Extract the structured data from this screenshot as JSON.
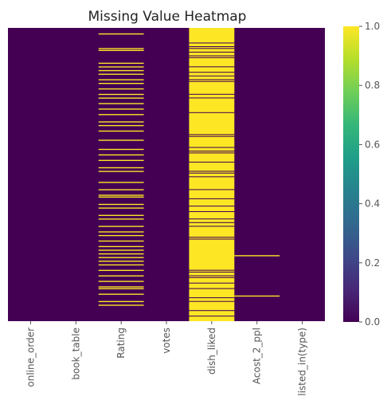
{
  "chart_data": {
    "type": "heatmap",
    "title": "Missing Value Heatmap",
    "columns": [
      "online_order",
      "book_table",
      "Rating",
      "votes",
      "dish_liked",
      "Acost_2_ppl",
      "listed_in(type)"
    ],
    "colorbar": {
      "colormap": "viridis",
      "range": [
        0.0,
        1.0
      ],
      "ticks": [
        "0.0",
        "0.2",
        "0.4",
        "0.6",
        "0.8",
        "1.0"
      ],
      "low_color": "#440154",
      "high_color": "#fde725"
    },
    "missing_rows": {
      "online_order": [],
      "book_table": [],
      "Rating": [
        3,
        11,
        12,
        19,
        21,
        23,
        25,
        28,
        30,
        33,
        36,
        38,
        41,
        44,
        47,
        51,
        53,
        56,
        61,
        66,
        69,
        72,
        76,
        78,
        84,
        88,
        91,
        92,
        96,
        98,
        102,
        104,
        108,
        111,
        113,
        116,
        119,
        121,
        123,
        125,
        127,
        129,
        132,
        135,
        138,
        141,
        142,
        145,
        149,
        151
      ],
      "votes": [],
      "dish_liked": "mostly-missing",
      "Acost_2_ppl": [
        124,
        146
      ],
      "listed_in(type)": []
    }
  }
}
